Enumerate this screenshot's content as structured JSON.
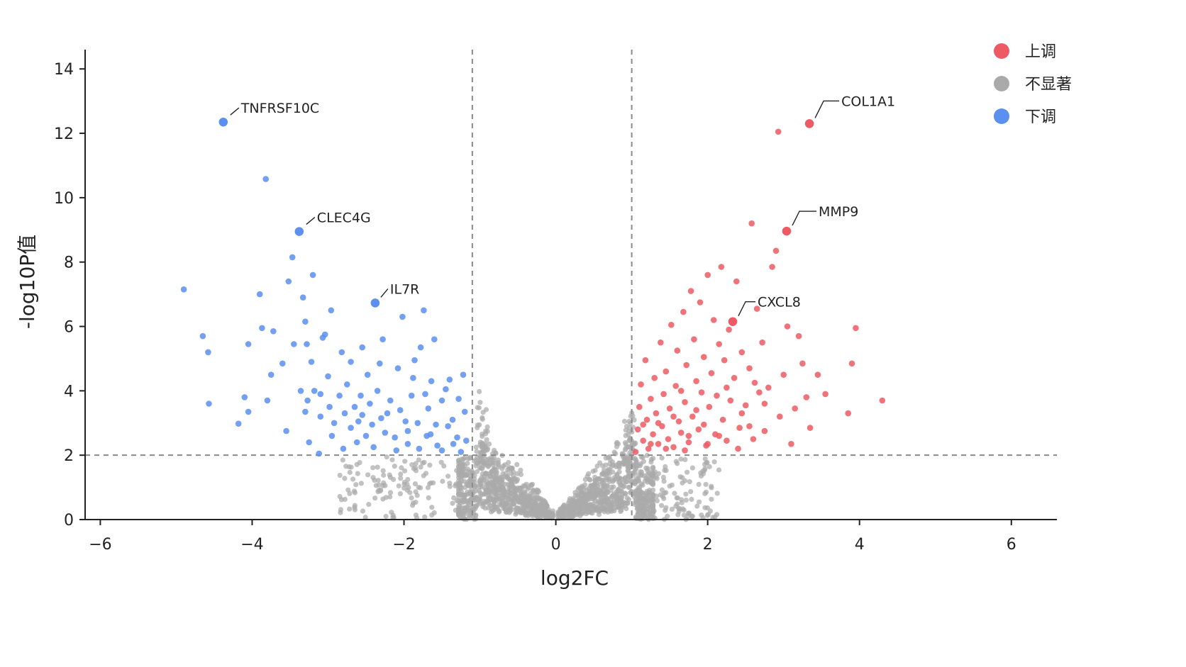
{
  "chart_data": {
    "type": "scatter",
    "xlabel": "log2FC",
    "ylabel": "-log10P值",
    "xlim": [
      -6.2,
      6.6
    ],
    "ylim": [
      0,
      14.6
    ],
    "xticks": [
      -6,
      -4,
      -2,
      0,
      2,
      4,
      6
    ],
    "xtick_labels": [
      "−6",
      "−4",
      "−2",
      "0",
      "2",
      "4",
      "6"
    ],
    "yticks": [
      0,
      2,
      4,
      6,
      8,
      10,
      12,
      14
    ],
    "ytick_labels": [
      "0",
      "2",
      "4",
      "6",
      "8",
      "10",
      "12",
      "14"
    ],
    "thresholds": {
      "log2fc_low": -1.1,
      "log2fc_high": 1.0,
      "neg_log10_p": 2
    },
    "colors": {
      "up": "#ee5a63",
      "ns": "#aaaaaa",
      "down": "#5b8ff0",
      "line": "#8a8a8a"
    },
    "legend": {
      "position": "top-right",
      "entries": [
        {
          "key": "up",
          "label": "上调"
        },
        {
          "key": "ns",
          "label": "不显著"
        },
        {
          "key": "down",
          "label": "下调"
        }
      ]
    },
    "grid": false,
    "labeled_points": [
      {
        "label": "TNFRSF10C",
        "x": -4.38,
        "y": 12.35,
        "group": "down"
      },
      {
        "label": "CLEC4G",
        "x": -3.38,
        "y": 8.95,
        "group": "down"
      },
      {
        "label": "IL7R",
        "x": -2.38,
        "y": 6.73,
        "group": "down"
      },
      {
        "label": "COL1A1",
        "x": 3.34,
        "y": 12.3,
        "group": "up"
      },
      {
        "label": "MMP9",
        "x": 3.04,
        "y": 8.96,
        "group": "up"
      },
      {
        "label": "CXCL8",
        "x": 2.33,
        "y": 6.15,
        "group": "up"
      }
    ],
    "series": [
      {
        "group": "down",
        "points": [
          [
            -4.9,
            7.15
          ],
          [
            -4.65,
            5.7
          ],
          [
            -4.58,
            5.2
          ],
          [
            -4.57,
            3.6
          ],
          [
            -4.18,
            2.98
          ],
          [
            -4.1,
            3.8
          ],
          [
            -4.05,
            3.35
          ],
          [
            -4.05,
            5.45
          ],
          [
            -3.9,
            7.0
          ],
          [
            -3.87,
            5.95
          ],
          [
            -3.82,
            10.58
          ],
          [
            -3.8,
            3.7
          ],
          [
            -3.75,
            4.5
          ],
          [
            -3.72,
            5.85
          ],
          [
            -3.6,
            4.85
          ],
          [
            -3.55,
            2.75
          ],
          [
            -3.52,
            7.4
          ],
          [
            -3.47,
            8.15
          ],
          [
            -3.45,
            5.45
          ],
          [
            -3.36,
            4.0
          ],
          [
            -3.33,
            6.9
          ],
          [
            -3.3,
            3.35
          ],
          [
            -3.3,
            6.15
          ],
          [
            -3.28,
            5.45
          ],
          [
            -3.27,
            3.7
          ],
          [
            -3.25,
            2.4
          ],
          [
            -3.22,
            4.9
          ],
          [
            -3.2,
            7.6
          ],
          [
            -3.18,
            4.0
          ],
          [
            -3.12,
            2.05
          ],
          [
            -3.1,
            3.2
          ],
          [
            -3.1,
            3.9
          ],
          [
            -3.07,
            5.65
          ],
          [
            -3.04,
            5.75
          ],
          [
            -3.0,
            4.45
          ],
          [
            -2.98,
            3.5
          ],
          [
            -2.96,
            6.5
          ],
          [
            -2.92,
            3.0
          ],
          [
            -2.85,
            3.85
          ],
          [
            -2.82,
            5.2
          ],
          [
            -2.78,
            3.3
          ],
          [
            -2.75,
            4.2
          ],
          [
            -2.7,
            4.9
          ],
          [
            -2.7,
            2.85
          ],
          [
            -2.65,
            3.5
          ],
          [
            -2.6,
            3.05
          ],
          [
            -2.57,
            3.85
          ],
          [
            -2.55,
            5.35
          ],
          [
            -2.5,
            2.6
          ],
          [
            -2.48,
            4.5
          ],
          [
            -2.45,
            3.6
          ],
          [
            -2.42,
            2.95
          ],
          [
            -2.35,
            4.0
          ],
          [
            -2.32,
            4.85
          ],
          [
            -2.28,
            5.6
          ],
          [
            -2.22,
            3.3
          ],
          [
            -2.18,
            3.7
          ],
          [
            -2.12,
            2.55
          ],
          [
            -2.08,
            4.7
          ],
          [
            -2.02,
            6.3
          ],
          [
            -1.98,
            3.05
          ],
          [
            -1.95,
            2.35
          ],
          [
            -1.9,
            3.85
          ],
          [
            -1.86,
            4.95
          ],
          [
            -1.82,
            3.0
          ],
          [
            -1.78,
            5.35
          ],
          [
            -1.74,
            6.5
          ],
          [
            -1.7,
            2.6
          ],
          [
            -1.68,
            3.45
          ],
          [
            -1.64,
            4.3
          ],
          [
            -1.6,
            5.6
          ],
          [
            -1.56,
            2.3
          ],
          [
            -1.5,
            3.7
          ],
          [
            -1.45,
            4.05
          ],
          [
            -1.42,
            2.9
          ],
          [
            -1.36,
            3.1
          ],
          [
            -1.3,
            2.55
          ],
          [
            -1.22,
            4.5
          ],
          [
            -1.2,
            3.35
          ],
          [
            -1.18,
            2.45
          ],
          [
            -2.95,
            2.6
          ],
          [
            -2.4,
            2.25
          ],
          [
            -2.1,
            2.15
          ],
          [
            -1.8,
            2.2
          ],
          [
            -1.5,
            2.15
          ],
          [
            -1.25,
            2.1
          ],
          [
            -2.62,
            2.4
          ],
          [
            -2.25,
            2.7
          ],
          [
            -1.95,
            2.75
          ],
          [
            -1.65,
            2.65
          ],
          [
            -1.35,
            2.35
          ],
          [
            -2.8,
            2.2
          ],
          [
            -2.05,
            3.4
          ],
          [
            -1.72,
            3.9
          ],
          [
            -1.4,
            4.35
          ],
          [
            -2.55,
            3.25
          ],
          [
            -1.88,
            4.4
          ],
          [
            -2.3,
            3.15
          ],
          [
            -1.58,
            2.95
          ],
          [
            -1.28,
            3.75
          ]
        ]
      },
      {
        "group": "up",
        "points": [
          [
            1.05,
            2.1
          ],
          [
            1.08,
            2.8
          ],
          [
            1.1,
            3.5
          ],
          [
            1.12,
            4.2
          ],
          [
            1.15,
            2.45
          ],
          [
            1.18,
            4.95
          ],
          [
            1.2,
            3.1
          ],
          [
            1.22,
            2.2
          ],
          [
            1.25,
            3.75
          ],
          [
            1.28,
            2.65
          ],
          [
            1.3,
            4.4
          ],
          [
            1.32,
            3.3
          ],
          [
            1.35,
            2.35
          ],
          [
            1.38,
            5.5
          ],
          [
            1.4,
            2.9
          ],
          [
            1.42,
            3.9
          ],
          [
            1.45,
            4.6
          ],
          [
            1.48,
            2.5
          ],
          [
            1.5,
            3.45
          ],
          [
            1.52,
            6.05
          ],
          [
            1.55,
            2.25
          ],
          [
            1.58,
            4.15
          ],
          [
            1.6,
            5.25
          ],
          [
            1.62,
            3.05
          ],
          [
            1.65,
            2.7
          ],
          [
            1.68,
            6.45
          ],
          [
            1.7,
            3.65
          ],
          [
            1.72,
            4.8
          ],
          [
            1.75,
            2.4
          ],
          [
            1.78,
            7.1
          ],
          [
            1.8,
            3.2
          ],
          [
            1.82,
            5.6
          ],
          [
            1.85,
            4.3
          ],
          [
            1.88,
            2.8
          ],
          [
            1.9,
            6.75
          ],
          [
            1.92,
            3.95
          ],
          [
            1.95,
            5.05
          ],
          [
            1.98,
            2.3
          ],
          [
            2.0,
            7.6
          ],
          [
            2.02,
            3.5
          ],
          [
            2.05,
            4.55
          ],
          [
            2.08,
            6.2
          ],
          [
            2.1,
            2.65
          ],
          [
            2.12,
            3.85
          ],
          [
            2.15,
            5.45
          ],
          [
            2.18,
            7.85
          ],
          [
            2.2,
            3.1
          ],
          [
            2.22,
            4.95
          ],
          [
            2.25,
            2.45
          ],
          [
            2.28,
            5.9
          ],
          [
            2.3,
            3.7
          ],
          [
            2.35,
            4.4
          ],
          [
            2.38,
            7.4
          ],
          [
            2.42,
            2.85
          ],
          [
            2.45,
            5.2
          ],
          [
            2.5,
            3.55
          ],
          [
            2.55,
            4.7
          ],
          [
            2.58,
            9.2
          ],
          [
            2.6,
            2.5
          ],
          [
            2.65,
            6.55
          ],
          [
            2.68,
            3.95
          ],
          [
            2.72,
            5.5
          ],
          [
            2.75,
            2.75
          ],
          [
            2.8,
            4.1
          ],
          [
            2.85,
            7.85
          ],
          [
            2.9,
            8.35
          ],
          [
            2.93,
            12.05
          ],
          [
            2.95,
            3.2
          ],
          [
            3.0,
            4.5
          ],
          [
            3.05,
            6.0
          ],
          [
            3.1,
            2.35
          ],
          [
            3.15,
            3.45
          ],
          [
            3.2,
            5.7
          ],
          [
            3.25,
            4.85
          ],
          [
            3.3,
            3.8
          ],
          [
            3.35,
            2.85
          ],
          [
            3.45,
            4.5
          ],
          [
            3.55,
            3.9
          ],
          [
            3.85,
            3.3
          ],
          [
            3.9,
            4.85
          ],
          [
            3.95,
            5.95
          ],
          [
            4.3,
            3.7
          ],
          [
            2.62,
            4.25
          ],
          [
            2.4,
            2.2
          ],
          [
            2.0,
            2.35
          ],
          [
            1.75,
            2.6
          ],
          [
            1.45,
            2.2
          ],
          [
            1.25,
            2.35
          ],
          [
            2.15,
            2.6
          ],
          [
            1.55,
            3.2
          ],
          [
            1.85,
            3.4
          ],
          [
            2.45,
            3.3
          ],
          [
            2.75,
            3.6
          ],
          [
            1.65,
            4.0
          ],
          [
            2.25,
            4.1
          ],
          [
            1.35,
            3.0
          ],
          [
            1.95,
            2.95
          ],
          [
            2.55,
            2.9
          ],
          [
            1.15,
            2.95
          ],
          [
            1.7,
            2.15
          ]
        ]
      }
    ]
  }
}
